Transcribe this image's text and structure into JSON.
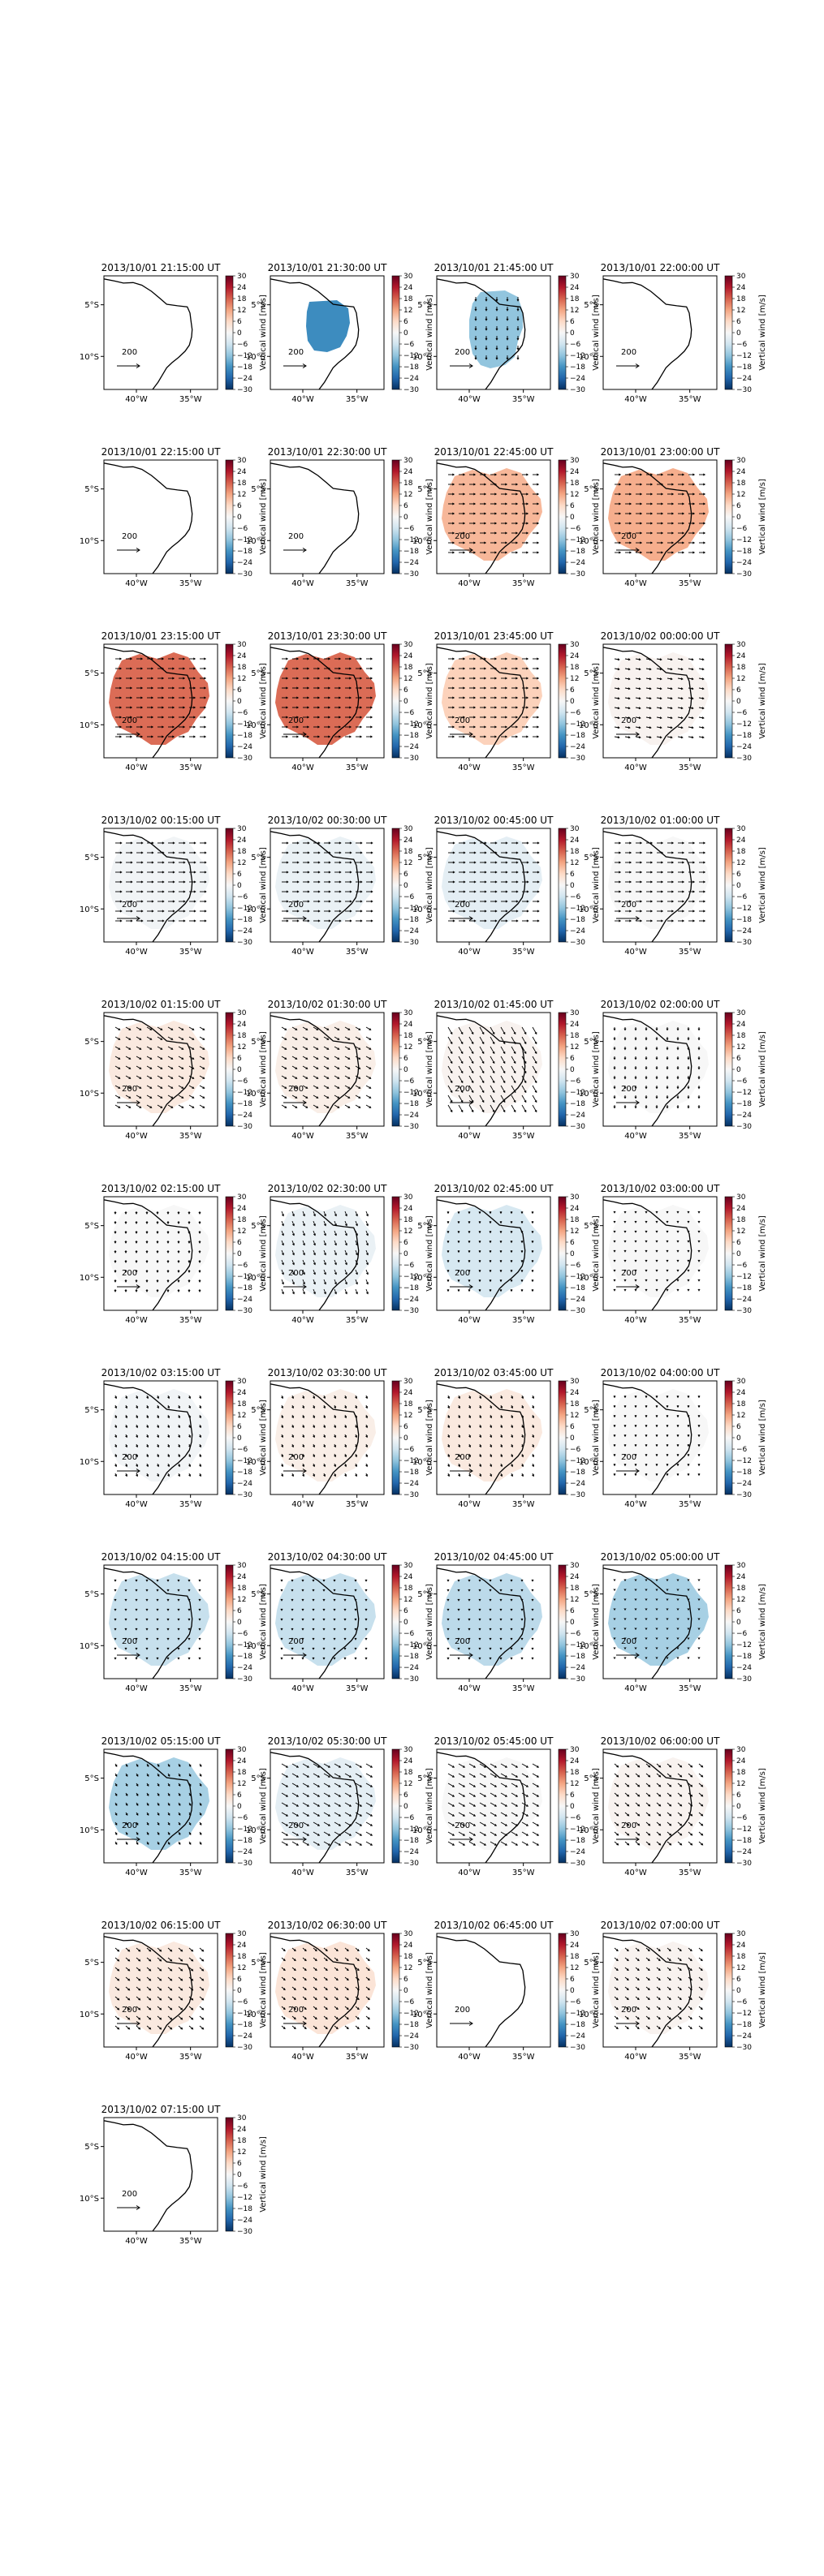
{
  "figure": {
    "colorbar": {
      "label": "Vertical wind [m/s]",
      "ticks": [
        "30",
        "24",
        "18",
        "12",
        "6",
        "0",
        "−6",
        "−12",
        "−18",
        "−24",
        "−30"
      ],
      "range": [
        -30,
        30
      ],
      "colormap": "RdBu_r"
    },
    "axes": {
      "xticks": [
        "40°W",
        "35°W"
      ],
      "yticks": [
        "5°S",
        "10°S"
      ],
      "quiver_key": "200"
    },
    "region": {
      "lon": [
        -43,
        -32.5
      ],
      "lat": [
        -13.2,
        -2.2
      ]
    },
    "coastline_color": "#000000",
    "arrow_color": "#000000"
  },
  "chart_data": {
    "type": "heatmap",
    "description_units": "Vertical wind [m/s]",
    "panels": [
      {
        "title": "2013/10/01 21:15:00 UT",
        "value": null,
        "arrow_dir": 0,
        "arrow_len": 0,
        "extent": "none"
      },
      {
        "title": "2013/10/01 21:30:00 UT",
        "value": -19,
        "arrow_dir": 0,
        "arrow_len": 0,
        "extent": "small"
      },
      {
        "title": "2013/10/01 21:45:00 UT",
        "value": -12,
        "arrow_dir": 90,
        "arrow_len": 0.4,
        "extent": "medium"
      },
      {
        "title": "2013/10/01 22:00:00 UT",
        "value": null,
        "arrow_dir": 0,
        "arrow_len": 0,
        "extent": "none"
      },
      {
        "title": "2013/10/01 22:15:00 UT",
        "value": null,
        "arrow_dir": 0,
        "arrow_len": 0,
        "extent": "none"
      },
      {
        "title": "2013/10/01 22:30:00 UT",
        "value": null,
        "arrow_dir": 0,
        "arrow_len": 0,
        "extent": "none"
      },
      {
        "title": "2013/10/01 22:45:00 UT",
        "value": 10,
        "arrow_dir": 0,
        "arrow_len": 0.6,
        "extent": "full"
      },
      {
        "title": "2013/10/01 23:00:00 UT",
        "value": 11,
        "arrow_dir": 0,
        "arrow_len": 0.6,
        "extent": "full"
      },
      {
        "title": "2013/10/01 23:15:00 UT",
        "value": 17,
        "arrow_dir": 0,
        "arrow_len": 0.6,
        "extent": "full"
      },
      {
        "title": "2013/10/01 23:30:00 UT",
        "value": 17,
        "arrow_dir": 0,
        "arrow_len": 0.6,
        "extent": "full"
      },
      {
        "title": "2013/10/01 23:45:00 UT",
        "value": 7,
        "arrow_dir": 0,
        "arrow_len": 0.6,
        "extent": "full"
      },
      {
        "title": "2013/10/02 00:00:00 UT",
        "value": 1,
        "arrow_dir": 10,
        "arrow_len": 0.5,
        "extent": "full"
      },
      {
        "title": "2013/10/02 00:15:00 UT",
        "value": -1,
        "arrow_dir": 0,
        "arrow_len": 0.65,
        "extent": "full"
      },
      {
        "title": "2013/10/02 00:30:00 UT",
        "value": -2,
        "arrow_dir": 0,
        "arrow_len": 0.65,
        "extent": "full"
      },
      {
        "title": "2013/10/02 00:45:00 UT",
        "value": -3,
        "arrow_dir": 0,
        "arrow_len": 0.65,
        "extent": "full"
      },
      {
        "title": "2013/10/02 01:00:00 UT",
        "value": 0,
        "arrow_dir": 0,
        "arrow_len": 0.6,
        "extent": "full"
      },
      {
        "title": "2013/10/02 01:15:00 UT",
        "value": 3,
        "arrow_dir": 30,
        "arrow_len": 0.55,
        "extent": "full"
      },
      {
        "title": "2013/10/02 01:30:00 UT",
        "value": 2,
        "arrow_dir": 30,
        "arrow_len": 0.55,
        "extent": "full"
      },
      {
        "title": "2013/10/02 01:45:00 UT",
        "value": 1,
        "arrow_dir": 60,
        "arrow_len": 0.8,
        "extent": "full"
      },
      {
        "title": "2013/10/02 02:00:00 UT",
        "value": 0,
        "arrow_dir": 90,
        "arrow_len": 0.3,
        "extent": "full"
      },
      {
        "title": "2013/10/02 02:15:00 UT",
        "value": 0,
        "arrow_dir": 90,
        "arrow_len": 0.25,
        "extent": "full"
      },
      {
        "title": "2013/10/02 02:30:00 UT",
        "value": -2,
        "arrow_dir": 70,
        "arrow_len": 0.5,
        "extent": "full"
      },
      {
        "title": "2013/10/02 02:45:00 UT",
        "value": -5,
        "arrow_dir": 90,
        "arrow_len": 0.2,
        "extent": "full"
      },
      {
        "title": "2013/10/02 03:00:00 UT",
        "value": 0,
        "arrow_dir": 90,
        "arrow_len": 0.15,
        "extent": "full"
      },
      {
        "title": "2013/10/02 03:15:00 UT",
        "value": -1,
        "arrow_dir": 70,
        "arrow_len": 0.3,
        "extent": "full"
      },
      {
        "title": "2013/10/02 03:30:00 UT",
        "value": 2,
        "arrow_dir": 70,
        "arrow_len": 0.3,
        "extent": "full"
      },
      {
        "title": "2013/10/02 03:45:00 UT",
        "value": 3,
        "arrow_dir": 70,
        "arrow_len": 0.3,
        "extent": "full"
      },
      {
        "title": "2013/10/02 04:00:00 UT",
        "value": 0,
        "arrow_dir": 90,
        "arrow_len": 0.2,
        "extent": "full"
      },
      {
        "title": "2013/10/02 04:15:00 UT",
        "value": -7,
        "arrow_dir": 90,
        "arrow_len": 0.15,
        "extent": "full"
      },
      {
        "title": "2013/10/02 04:30:00 UT",
        "value": -7,
        "arrow_dir": 90,
        "arrow_len": 0.15,
        "extent": "full"
      },
      {
        "title": "2013/10/02 04:45:00 UT",
        "value": -8,
        "arrow_dir": 90,
        "arrow_len": 0.15,
        "extent": "full"
      },
      {
        "title": "2013/10/02 05:00:00 UT",
        "value": -10,
        "arrow_dir": 90,
        "arrow_len": 0.1,
        "extent": "full"
      },
      {
        "title": "2013/10/02 05:15:00 UT",
        "value": -10,
        "arrow_dir": 60,
        "arrow_len": 0.3,
        "extent": "full"
      },
      {
        "title": "2013/10/02 05:30:00 UT",
        "value": -3,
        "arrow_dir": 30,
        "arrow_len": 0.7,
        "extent": "full"
      },
      {
        "title": "2013/10/02 05:45:00 UT",
        "value": 0,
        "arrow_dir": 30,
        "arrow_len": 0.7,
        "extent": "full"
      },
      {
        "title": "2013/10/02 06:00:00 UT",
        "value": 1,
        "arrow_dir": 40,
        "arrow_len": 0.5,
        "extent": "full"
      },
      {
        "title": "2013/10/02 06:15:00 UT",
        "value": 3,
        "arrow_dir": 40,
        "arrow_len": 0.5,
        "extent": "full"
      },
      {
        "title": "2013/10/02 06:30:00 UT",
        "value": 4,
        "arrow_dir": 40,
        "arrow_len": 0.45,
        "extent": "full"
      },
      {
        "title": "2013/10/02 06:45:00 UT",
        "value": null,
        "arrow_dir": 0,
        "arrow_len": 0,
        "extent": "none"
      },
      {
        "title": "2013/10/02 07:00:00 UT",
        "value": 1,
        "arrow_dir": 40,
        "arrow_len": 0.45,
        "extent": "full"
      },
      {
        "title": "2013/10/02 07:15:00 UT",
        "value": null,
        "arrow_dir": 0,
        "arrow_len": 0,
        "extent": "none"
      }
    ]
  }
}
